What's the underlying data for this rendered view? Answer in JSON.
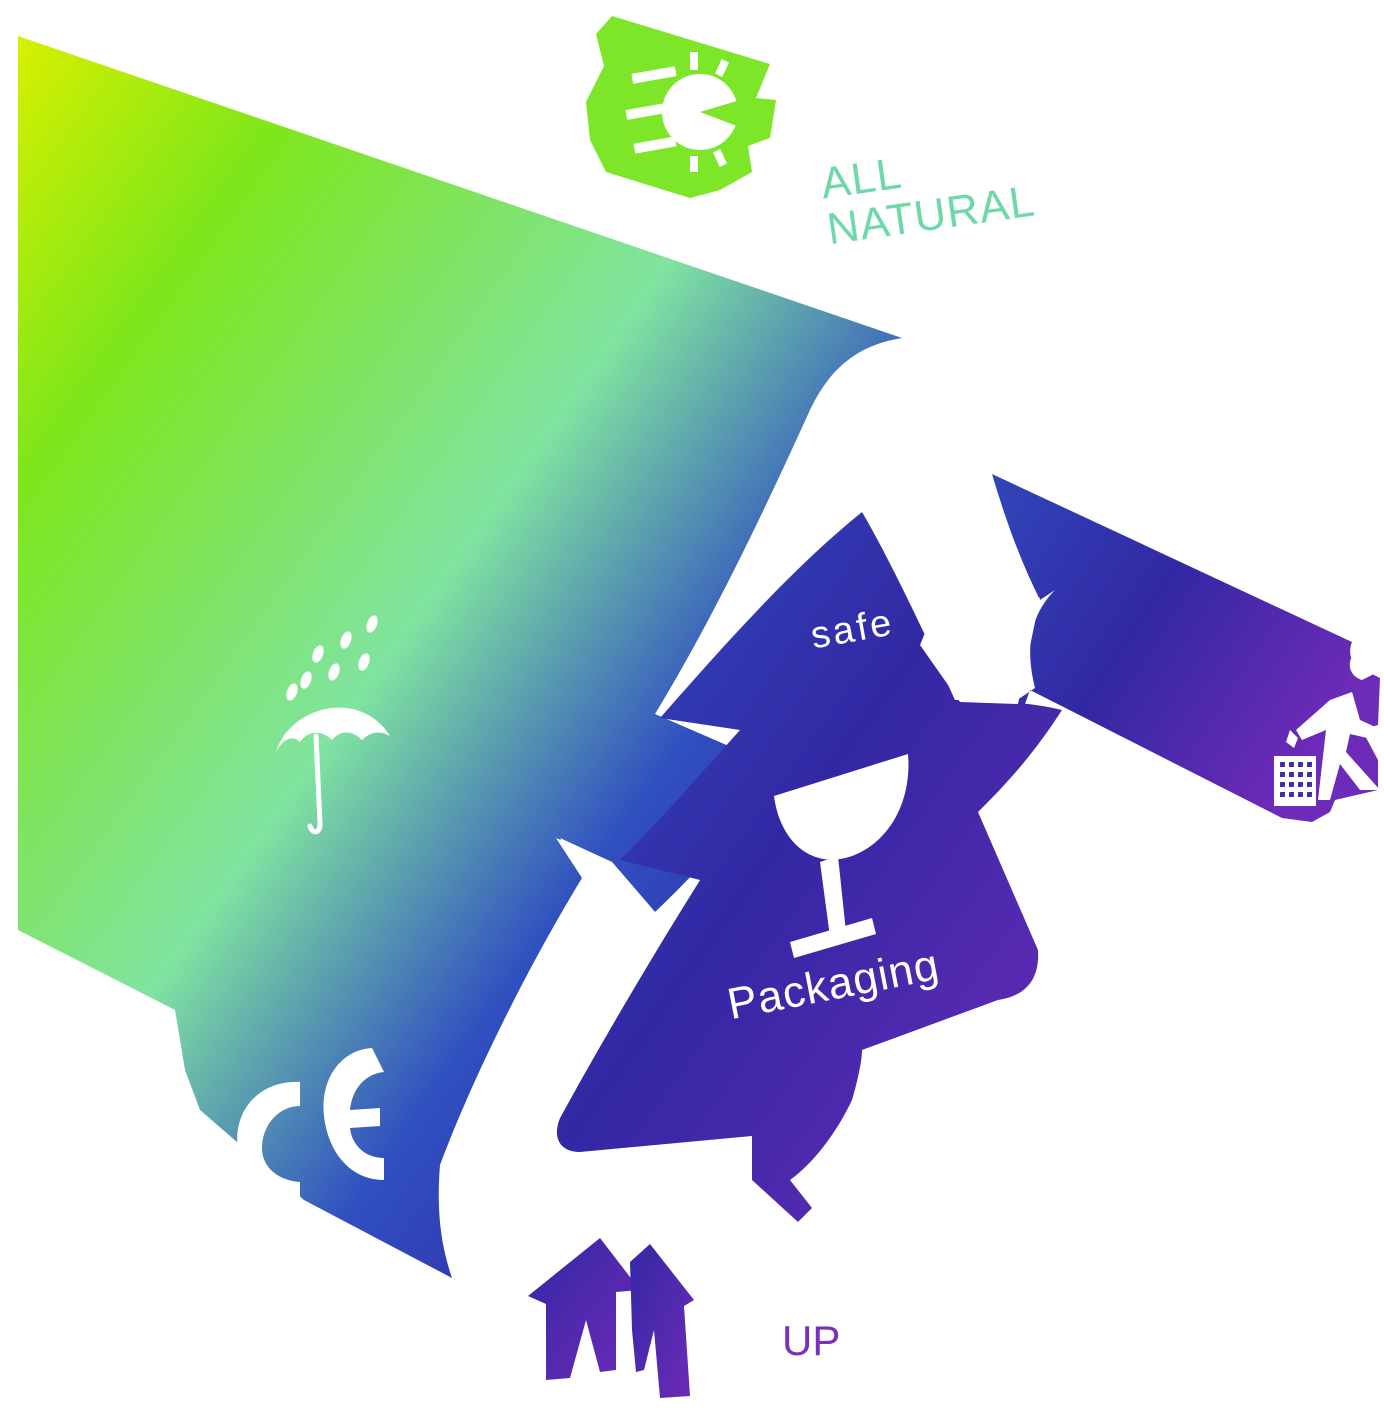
{
  "texts": {
    "all": "ALL",
    "natural": "NATURAL",
    "safe": "safe",
    "packaging": "Packaging",
    "up": "UP"
  },
  "colors": {
    "gradient_yellow": "#d8f000",
    "gradient_green": "#7ee61a",
    "gradient_mint": "#80e3a0",
    "gradient_blue": "#3050c0",
    "gradient_indigo": "#3228a4",
    "gradient_purple": "#6e2ab8",
    "sun_green": "#7ee628",
    "natural_text": "#6ed8a8",
    "up_text": "#7a30b8",
    "on_shape_text": "#ffffff"
  },
  "icons": [
    "sun-icon",
    "umbrella-icon",
    "rain-drops-icon",
    "ce-mark-icon",
    "recycle-triangle-icon",
    "fragile-glass-icon",
    "this-way-up-icon",
    "trash-bin-icon",
    "person-disposal-icon"
  ]
}
